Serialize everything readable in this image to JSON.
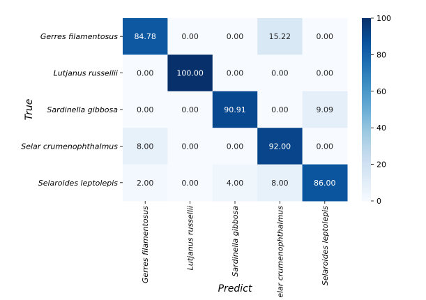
{
  "chart_data": {
    "type": "heatmap",
    "title": "",
    "xlabel": "Predict",
    "ylabel": "True",
    "row_labels": [
      "Gerres filamentosus",
      "Lutjanus russellii",
      "Sardinella gibbosa",
      "Selar crumenophthalmus",
      "Selaroides leptolepis"
    ],
    "col_labels": [
      "Gerres filamentosus",
      "Lutjanus russellii",
      "Sardinella gibbosa",
      "Selar crumenophthalmus",
      "Selaroides leptolepis"
    ],
    "values": [
      [
        84.78,
        0.0,
        0.0,
        15.22,
        0.0
      ],
      [
        0.0,
        100.0,
        0.0,
        0.0,
        0.0
      ],
      [
        0.0,
        0.0,
        90.91,
        0.0,
        9.09
      ],
      [
        8.0,
        0.0,
        0.0,
        92.0,
        0.0
      ],
      [
        2.0,
        0.0,
        4.0,
        8.0,
        86.0
      ]
    ],
    "colormap": "Blues",
    "vmin": 0,
    "vmax": 100,
    "colorbar_ticks": [
      0,
      20,
      40,
      60,
      80,
      100
    ]
  }
}
